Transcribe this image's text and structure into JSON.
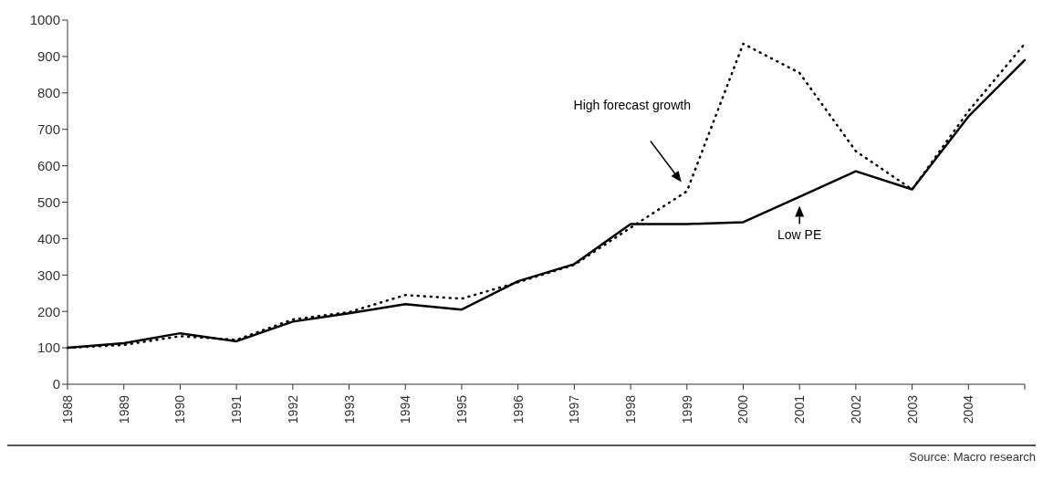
{
  "chart_data": {
    "type": "line",
    "categories": [
      "1988",
      "1989",
      "1990",
      "1991",
      "1992",
      "1993",
      "1994",
      "1995",
      "1996",
      "1997",
      "1998",
      "1999",
      "2000",
      "2001",
      "2002",
      "2003",
      "2004",
      null
    ],
    "series": [
      {
        "name": "High forecast growth",
        "color": "#000000",
        "line_style": "dotted",
        "values": [
          100,
          108,
          132,
          122,
          178,
          198,
          245,
          235,
          280,
          328,
          430,
          530,
          935,
          855,
          640,
          535,
          750,
          935
        ]
      },
      {
        "name": "Low PE",
        "color": "#000000",
        "line_style": "solid",
        "values": [
          100,
          113,
          140,
          118,
          172,
          195,
          220,
          205,
          283,
          330,
          440,
          440,
          445,
          515,
          585,
          535,
          735,
          890
        ]
      }
    ],
    "ylim": [
      0,
      1000
    ],
    "yticks": [
      0,
      100,
      200,
      300,
      400,
      500,
      600,
      700,
      800,
      900,
      1000
    ],
    "grid": false,
    "marker": "none",
    "annotations": [
      "Source: Macro research"
    ]
  }
}
